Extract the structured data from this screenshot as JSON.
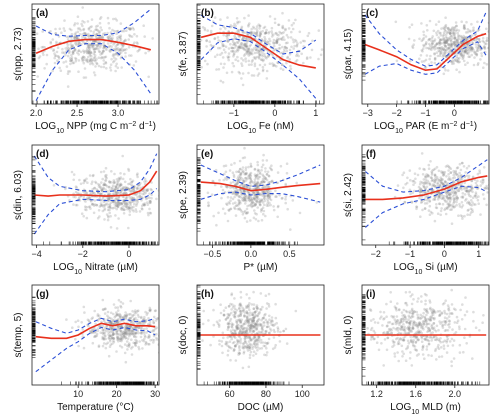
{
  "chart_data": [
    {
      "id": "a",
      "type": "scatter",
      "panel_label": "(a)",
      "xlabel": "LOG10 NPP (mg C m-2 d-1)",
      "xlabel_parts": [
        "LOG",
        "10",
        " NPP (mg C m",
        "−2",
        " d",
        "−1",
        ")"
      ],
      "ylabel": "s(npp, 2.73)",
      "xlim": [
        1.95,
        3.5
      ],
      "ylim": [
        -1.6,
        1.35
      ],
      "xticks": [
        2.0,
        2.5,
        3.0
      ],
      "xticklabels": [
        "2.0",
        "2.5",
        "3.0"
      ],
      "yticks": [],
      "yticklabels": [],
      "fit": {
        "x": [
          2.0,
          2.2,
          2.4,
          2.6,
          2.8,
          3.0,
          3.2,
          3.4
        ],
        "y": [
          -0.1,
          0.1,
          0.25,
          0.3,
          0.3,
          0.22,
          0.12,
          0.0
        ]
      },
      "upper": {
        "x": [
          2.0,
          2.2,
          2.4,
          2.6,
          2.8,
          3.0,
          3.2,
          3.4
        ],
        "y": [
          0.7,
          0.45,
          0.4,
          0.42,
          0.42,
          0.5,
          0.8,
          1.2
        ]
      },
      "lower": {
        "x": [
          2.0,
          2.2,
          2.4,
          2.6,
          2.8,
          3.0,
          3.2,
          3.4
        ],
        "y": [
          -1.5,
          -0.6,
          0.0,
          0.18,
          0.18,
          -0.1,
          -0.6,
          -1.3
        ]
      },
      "cloud": {
        "xm": 2.7,
        "xs": 0.3,
        "ym": 0.1,
        "ys": 0.35
      },
      "rug": "x"
    },
    {
      "id": "b",
      "type": "scatter",
      "panel_label": "(b)",
      "xlabel": "LOG10 Fe (nM)",
      "xlabel_parts": [
        "LOG",
        "10",
        " Fe (nM)"
      ],
      "ylabel": "s(fe, 3.87)",
      "xlim": [
        -1.9,
        1.2
      ],
      "ylim": [
        -2.0,
        1.6
      ],
      "xticks": [
        -1,
        0,
        1
      ],
      "xticklabels": [
        "−1",
        "0",
        "1"
      ],
      "yticks": [],
      "yticklabels": [],
      "fit": {
        "x": [
          -1.8,
          -1.4,
          -1.0,
          -0.6,
          -0.2,
          0.2,
          0.6,
          1.0
        ],
        "y": [
          0.4,
          0.55,
          0.55,
          0.4,
          0.0,
          -0.4,
          -0.6,
          -0.7
        ]
      },
      "upper": {
        "x": [
          -1.8,
          -1.4,
          -1.0,
          -0.6,
          -0.2,
          0.2,
          0.6,
          1.0
        ],
        "y": [
          1.2,
          0.85,
          0.75,
          0.55,
          0.15,
          -0.2,
          -0.1,
          0.3
        ]
      },
      "lower": {
        "x": [
          -1.8,
          -1.4,
          -1.0,
          -0.6,
          -0.2,
          0.2,
          0.6,
          1.0
        ],
        "y": [
          -0.4,
          0.2,
          0.35,
          0.25,
          -0.15,
          -0.6,
          -1.1,
          -1.8
        ]
      },
      "cloud": {
        "xm": -0.5,
        "xs": 0.6,
        "ym": 0.1,
        "ys": 0.45
      },
      "rug": "x"
    },
    {
      "id": "c",
      "type": "scatter",
      "panel_label": "(c)",
      "xlabel": "LOG10 PAR (E m-2 d-1)",
      "xlabel_parts": [
        "LOG",
        "10",
        " PAR (E m",
        "−2",
        " d",
        "−1",
        ")"
      ],
      "ylabel": "s(par, 4.15)",
      "xlim": [
        -3.2,
        1.2
      ],
      "ylim": [
        -2.2,
        1.5
      ],
      "xticks": [
        -3,
        -2,
        -1,
        0
      ],
      "xticklabels": [
        "−3",
        "−2",
        "−1",
        "0"
      ],
      "yticks": [],
      "yticklabels": [],
      "fit": {
        "x": [
          -3.1,
          -2.6,
          -2.0,
          -1.5,
          -1.0,
          -0.6,
          -0.2,
          0.3,
          0.8,
          1.1
        ],
        "y": [
          0.0,
          -0.2,
          -0.45,
          -0.75,
          -0.95,
          -0.9,
          -0.5,
          0.0,
          0.3,
          0.4
        ]
      },
      "upper": {
        "x": [
          -3.1,
          -2.6,
          -2.0,
          -1.5,
          -1.0,
          -0.6,
          -0.2,
          0.3,
          0.8,
          1.1
        ],
        "y": [
          1.1,
          0.4,
          -0.2,
          -0.55,
          -0.8,
          -0.75,
          -0.35,
          0.15,
          0.5,
          1.2
        ]
      },
      "lower": {
        "x": [
          -3.1,
          -2.6,
          -2.0,
          -1.5,
          -1.0,
          -0.6,
          -0.2,
          0.3,
          0.8,
          1.1
        ],
        "y": [
          -1.1,
          -0.8,
          -0.7,
          -0.95,
          -1.1,
          -1.05,
          -0.65,
          -0.15,
          0.1,
          -0.4
        ]
      },
      "cloud": {
        "xm": 0.0,
        "xs": 0.6,
        "ym": 0.0,
        "ys": 0.4
      },
      "rug": "x"
    },
    {
      "id": "d",
      "type": "scatter",
      "panel_label": "(d)",
      "xlabel": "LOG10 Nitrate (µM)",
      "xlabel_parts": [
        "LOG",
        "10",
        " Nitrate (µM)"
      ],
      "ylabel": "s(din, 6.03)",
      "xlim": [
        -4.2,
        1.3
      ],
      "ylim": [
        -2.3,
        2.3
      ],
      "xticks": [
        -4,
        -2,
        0
      ],
      "xticklabels": [
        "−4",
        "−2",
        "0"
      ],
      "yticks": [],
      "yticklabels": [],
      "fit": {
        "x": [
          -4.1,
          -3.5,
          -3.0,
          -2.0,
          -1.0,
          0.0,
          0.5,
          0.9,
          1.2
        ],
        "y": [
          0.0,
          -0.05,
          0.0,
          0.0,
          -0.05,
          0.0,
          0.2,
          0.6,
          1.1
        ]
      },
      "upper": {
        "x": [
          -4.1,
          -3.5,
          -3.0,
          -2.0,
          -1.0,
          0.0,
          0.5,
          0.9,
          1.2
        ],
        "y": [
          1.8,
          0.8,
          0.4,
          0.2,
          0.15,
          0.25,
          0.6,
          1.2,
          1.9
        ]
      },
      "lower": {
        "x": [
          -4.1,
          -3.5,
          -3.0,
          -2.0,
          -1.0,
          0.0,
          0.5,
          0.9,
          1.2
        ],
        "y": [
          -1.8,
          -0.9,
          -0.4,
          -0.2,
          -0.25,
          -0.25,
          -0.2,
          0.0,
          0.3
        ]
      },
      "cloud": {
        "xm": -0.6,
        "xs": 0.9,
        "ym": 0.0,
        "ys": 0.5
      },
      "rug": "x"
    },
    {
      "id": "e",
      "type": "scatter",
      "panel_label": "(e)",
      "xlabel": "P* (µM)",
      "xlabel_parts": [
        "P* (µM)"
      ],
      "ylabel": "s(pe, 2.39)",
      "xlim": [
        -0.7,
        0.95
      ],
      "ylim": [
        -1.9,
        1.6
      ],
      "xticks": [
        -0.5,
        0.0,
        0.5
      ],
      "xticklabels": [
        "−0.5",
        "0.0",
        "0.5"
      ],
      "yticks": [],
      "yticklabels": [],
      "fit": {
        "x": [
          -0.65,
          -0.4,
          -0.2,
          0.0,
          0.2,
          0.4,
          0.6,
          0.9
        ],
        "y": [
          0.3,
          0.25,
          0.15,
          0.0,
          0.05,
          0.12,
          0.18,
          0.25
        ]
      },
      "upper": {
        "x": [
          -0.65,
          -0.4,
          -0.2,
          0.0,
          0.2,
          0.4,
          0.6,
          0.9
        ],
        "y": [
          0.9,
          0.6,
          0.35,
          0.15,
          0.2,
          0.35,
          0.55,
          0.9
        ]
      },
      "lower": {
        "x": [
          -0.65,
          -0.4,
          -0.2,
          0.0,
          0.2,
          0.4,
          0.6,
          0.9
        ],
        "y": [
          -0.3,
          -0.1,
          -0.05,
          -0.15,
          -0.1,
          -0.1,
          -0.2,
          -0.4
        ]
      },
      "cloud": {
        "xm": 0.0,
        "xs": 0.2,
        "ym": 0.0,
        "ys": 0.45
      },
      "rug": "x"
    },
    {
      "id": "f",
      "type": "scatter",
      "panel_label": "(f)",
      "xlabel": "LOG10 Si (µM)",
      "xlabel_parts": [
        "LOG",
        "10",
        " Si (µM)"
      ],
      "ylabel": "s(si, 2.42)",
      "xlim": [
        -2.4,
        1.3
      ],
      "ylim": [
        -1.9,
        1.5
      ],
      "xticks": [
        -2,
        -1,
        0,
        1
      ],
      "xticklabels": [
        "−2",
        "−1",
        "0",
        "1"
      ],
      "yticks": [],
      "yticklabels": [],
      "fit": {
        "x": [
          -2.3,
          -1.8,
          -1.2,
          -0.6,
          0.0,
          0.5,
          1.0,
          1.25
        ],
        "y": [
          -0.35,
          -0.35,
          -0.3,
          -0.2,
          0.0,
          0.25,
          0.4,
          0.45
        ]
      },
      "upper": {
        "x": [
          -2.3,
          -1.8,
          -1.2,
          -0.6,
          0.0,
          0.5,
          1.0,
          1.25
        ],
        "y": [
          0.6,
          0.1,
          -0.1,
          -0.05,
          0.1,
          0.4,
          0.8,
          1.0
        ]
      },
      "lower": {
        "x": [
          -2.3,
          -1.8,
          -1.2,
          -0.6,
          0.0,
          0.5,
          1.0,
          1.25
        ],
        "y": [
          -1.3,
          -0.8,
          -0.5,
          -0.35,
          -0.1,
          0.1,
          0.05,
          -0.1
        ]
      },
      "cloud": {
        "xm": 0.1,
        "xs": 0.6,
        "ym": 0.0,
        "ys": 0.4
      },
      "rug": "x"
    },
    {
      "id": "g",
      "type": "scatter",
      "panel_label": "(g)",
      "xlabel": "Temperature (°C)",
      "xlabel_parts": [
        "Temperature (°C)"
      ],
      "ylabel": "s(temp, 5)",
      "xlim": [
        -2,
        31
      ],
      "ylim": [
        -3.4,
        2.6
      ],
      "xticks": [
        10,
        20,
        30
      ],
      "xticklabels": [
        "10",
        "20",
        "30"
      ],
      "yticks": [],
      "yticklabels": [],
      "fit": {
        "x": [
          -1,
          3,
          7,
          10,
          13,
          16,
          19,
          22,
          25,
          28,
          30
        ],
        "y": [
          -0.5,
          -0.6,
          -0.6,
          -0.4,
          0.0,
          0.3,
          0.15,
          0.3,
          0.15,
          0.15,
          0.1
        ]
      },
      "upper": {
        "x": [
          -1,
          3,
          7,
          10,
          13,
          16,
          19,
          22,
          25,
          28,
          30
        ],
        "y": [
          0.4,
          0.0,
          -0.3,
          -0.1,
          0.3,
          0.6,
          0.4,
          0.55,
          0.4,
          0.45,
          0.6
        ]
      },
      "lower": {
        "x": [
          -1,
          3,
          7,
          10,
          13,
          16,
          19,
          22,
          25,
          28,
          30
        ],
        "y": [
          -2.6,
          -1.9,
          -1.2,
          -0.8,
          -0.3,
          0.05,
          -0.1,
          0.05,
          -0.1,
          -0.15,
          -0.4
        ]
      },
      "cloud": {
        "xm": 22,
        "xs": 5,
        "ym": 0.0,
        "ys": 0.6
      },
      "rug": "x"
    },
    {
      "id": "h",
      "type": "scatter",
      "panel_label": "(h)",
      "xlabel": "DOC (µM)",
      "xlabel_parts": [
        "DOC (µM)"
      ],
      "ylabel": "s(doc, 0)",
      "xlim": [
        42,
        112
      ],
      "ylim": [
        -2.0,
        2.0
      ],
      "xticks": [
        60,
        80,
        100
      ],
      "xticklabels": [
        "60",
        "80",
        "100"
      ],
      "yticks": [],
      "yticklabels": [],
      "fit": {
        "x": [
          44,
          110
        ],
        "y": [
          0.0,
          0.0
        ]
      },
      "upper": {
        "x": [
          44,
          110
        ],
        "y": [
          0.0,
          0.0
        ]
      },
      "lower": {
        "x": [
          44,
          110
        ],
        "y": [
          0.0,
          0.0
        ]
      },
      "cloud": {
        "xm": 70,
        "xs": 8,
        "ym": 0.3,
        "ys": 0.55
      },
      "rug": "x"
    },
    {
      "id": "i",
      "type": "scatter",
      "panel_label": "(i)",
      "xlabel": "LOG10 MLD (m)",
      "xlabel_parts": [
        "LOG",
        "10",
        " MLD (m)"
      ],
      "ylabel": "s(mld, 0)",
      "xlim": [
        1.05,
        2.35
      ],
      "ylim": [
        -2.0,
        2.0
      ],
      "xticks": [
        1.2,
        1.6,
        2.0
      ],
      "xticklabels": [
        "1.2",
        "1.6",
        "2.0"
      ],
      "yticks": [],
      "yticklabels": [],
      "fit": {
        "x": [
          1.08,
          2.32
        ],
        "y": [
          0.0,
          0.0
        ]
      },
      "upper": {
        "x": [
          1.08,
          2.32
        ],
        "y": [
          0.0,
          0.0
        ]
      },
      "lower": {
        "x": [
          1.08,
          2.32
        ],
        "y": [
          0.0,
          0.0
        ]
      },
      "cloud": {
        "xm": 1.6,
        "xs": 0.25,
        "ym": 0.3,
        "ys": 0.55
      },
      "rug": "x"
    }
  ]
}
